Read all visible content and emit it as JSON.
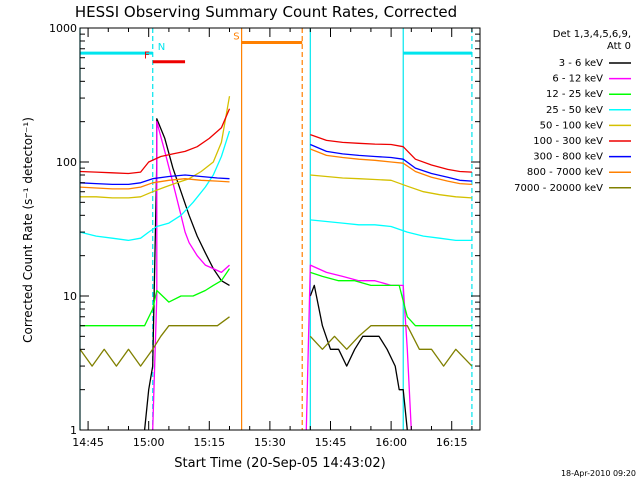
{
  "chart_data": {
    "type": "line",
    "title": "HESSI Observing Summary Count Rates, Corrected",
    "xlabel": "Start Time (20-Sep-05 14:43:02)",
    "ylabel": "Corrected Count Rate (s⁻¹ detector⁻¹)",
    "yscale": "log",
    "ylim": [
      1,
      1000
    ],
    "xlim": [
      "14:43",
      "16:22"
    ],
    "x_ticks": [
      "14:45",
      "15:00",
      "15:15",
      "15:30",
      "15:45",
      "16:00",
      "16:15"
    ],
    "y_ticks": [
      "1",
      "10",
      "100",
      "1000"
    ],
    "timestamp": "18-Apr-2010 09:20",
    "legend": {
      "header": [
        "Det 1,3,4,5,6,9,",
        "Att 0"
      ],
      "position": "right",
      "entries": [
        {
          "label": "3 - 6 keV",
          "color": "#000000"
        },
        {
          "label": "6 - 12 keV",
          "color": "#ff00ff"
        },
        {
          "label": "12 - 25 keV",
          "color": "#00ff00"
        },
        {
          "label": "25 - 50 keV",
          "color": "#00ffff"
        },
        {
          "label": "50 - 100 keV",
          "color": "#d4c000"
        },
        {
          "label": "100 - 300 keV",
          "color": "#ee0000"
        },
        {
          "label": "300 - 800 keV",
          "color": "#0000ff"
        },
        {
          "label": "800 - 7000 keV",
          "color": "#ff8000"
        },
        {
          "label": "7000 - 20000 keV",
          "color": "#808000"
        }
      ]
    },
    "flag_bars": [
      {
        "label": "N",
        "color": "#00e5ee",
        "level": 650,
        "segments": [
          [
            "14:43",
            "15:01"
          ],
          [
            "16:03",
            "16:20"
          ]
        ]
      },
      {
        "label": "F",
        "color": "#ee0000",
        "level": 560,
        "segments": [
          [
            "15:01",
            "15:09"
          ]
        ]
      },
      {
        "label": "S",
        "color": "#ff8000",
        "level": 780,
        "segments": [
          [
            "15:23",
            "15:38"
          ]
        ]
      }
    ],
    "markers": [
      {
        "time": "14:43",
        "color": "#00e5ee",
        "style": "solid"
      },
      {
        "time": "15:01",
        "color": "#00e5ee",
        "style": "dashed"
      },
      {
        "time": "15:23",
        "color": "#ff8000",
        "style": "solid"
      },
      {
        "time": "15:38",
        "color": "#ff8000",
        "style": "dashed"
      },
      {
        "time": "15:40",
        "color": "#00e5ee",
        "style": "solid"
      },
      {
        "time": "16:03",
        "color": "#00e5ee",
        "style": "solid"
      },
      {
        "time": "16:20",
        "color": "#00e5ee",
        "style": "dashed"
      }
    ],
    "gap": [
      "15:23",
      "15:40"
    ],
    "series": [
      {
        "name": "3 - 6 keV",
        "color": "#000000",
        "segments": [
          [
            [
              "14:59",
              1
            ],
            [
              "15:00",
              2
            ],
            [
              "15:01",
              3
            ],
            [
              "15:02",
              100
            ],
            [
              "15:02",
              210
            ],
            [
              "15:04",
              150
            ],
            [
              "15:06",
              90
            ],
            [
              "15:08",
              60
            ],
            [
              "15:10",
              40
            ],
            [
              "15:12",
              28
            ],
            [
              "15:14",
              21
            ],
            [
              "15:16",
              16
            ],
            [
              "15:18",
              13
            ],
            [
              "15:20",
              12
            ]
          ],
          [
            [
              "15:40",
              10
            ],
            [
              "15:41",
              12
            ],
            [
              "15:43",
              6
            ],
            [
              "15:45",
              4
            ],
            [
              "15:47",
              4
            ],
            [
              "15:49",
              3
            ],
            [
              "15:51",
              4
            ],
            [
              "15:53",
              5
            ],
            [
              "15:55",
              5
            ],
            [
              "15:57",
              5
            ],
            [
              "15:59",
              4
            ],
            [
              "16:01",
              3
            ],
            [
              "16:02",
              2
            ],
            [
              "16:03",
              2
            ],
            [
              "16:04",
              1
            ]
          ]
        ]
      },
      {
        "name": "6 - 12 keV",
        "color": "#ff00ff",
        "segments": [
          [
            [
              "15:01",
              1
            ],
            [
              "15:02",
              10
            ],
            [
              "15:02",
              200
            ],
            [
              "15:04",
              120
            ],
            [
              "15:06",
              70
            ],
            [
              "15:08",
              40
            ],
            [
              "15:09",
              30
            ],
            [
              "15:10",
              25
            ],
            [
              "15:12",
              20
            ],
            [
              "15:14",
              17
            ],
            [
              "15:16",
              16
            ],
            [
              "15:18",
              15
            ],
            [
              "15:20",
              17
            ]
          ],
          [
            [
              "15:39",
              1
            ],
            [
              "15:40",
              17
            ],
            [
              "15:44",
              15
            ],
            [
              "15:48",
              14
            ],
            [
              "15:52",
              13
            ],
            [
              "15:56",
              13
            ],
            [
              "16:00",
              12
            ],
            [
              "16:03",
              12
            ],
            [
              "16:04",
              4
            ],
            [
              "16:05",
              1
            ]
          ]
        ]
      },
      {
        "name": "12 - 25 keV",
        "color": "#00ff00",
        "segments": [
          [
            [
              "14:43",
              6
            ],
            [
              "14:47",
              6
            ],
            [
              "14:51",
              6
            ],
            [
              "14:55",
              6
            ],
            [
              "14:59",
              6
            ],
            [
              "15:01",
              8
            ],
            [
              "15:02",
              11
            ],
            [
              "15:05",
              9
            ],
            [
              "15:08",
              10
            ],
            [
              "15:11",
              10
            ],
            [
              "15:14",
              11
            ],
            [
              "15:16",
              12
            ],
            [
              "15:18",
              13
            ],
            [
              "15:20",
              16
            ]
          ],
          [
            [
              "15:40",
              15
            ],
            [
              "15:43",
              14
            ],
            [
              "15:47",
              13
            ],
            [
              "15:51",
              13
            ],
            [
              "15:55",
              12
            ],
            [
              "15:59",
              12
            ],
            [
              "16:02",
              12
            ],
            [
              "16:04",
              7
            ],
            [
              "16:06",
              6
            ],
            [
              "16:10",
              6
            ],
            [
              "16:14",
              6
            ],
            [
              "16:18",
              6
            ],
            [
              "16:20",
              6
            ]
          ]
        ]
      },
      {
        "name": "25 - 50 keV",
        "color": "#00ffff",
        "segments": [
          [
            [
              "14:43",
              30
            ],
            [
              "14:47",
              28
            ],
            [
              "14:51",
              27
            ],
            [
              "14:55",
              26
            ],
            [
              "14:58",
              27
            ],
            [
              "15:00",
              30
            ],
            [
              "15:02",
              33
            ],
            [
              "15:05",
              35
            ],
            [
              "15:08",
              40
            ],
            [
              "15:11",
              50
            ],
            [
              "15:14",
              65
            ],
            [
              "15:16",
              80
            ],
            [
              "15:18",
              110
            ],
            [
              "15:20",
              170
            ]
          ],
          [
            [
              "15:40",
              37
            ],
            [
              "15:44",
              36
            ],
            [
              "15:48",
              35
            ],
            [
              "15:52",
              34
            ],
            [
              "15:56",
              34
            ],
            [
              "16:00",
              33
            ],
            [
              "16:04",
              30
            ],
            [
              "16:08",
              28
            ],
            [
              "16:12",
              27
            ],
            [
              "16:16",
              26
            ],
            [
              "16:20",
              26
            ]
          ]
        ]
      },
      {
        "name": "50 - 100 keV",
        "color": "#d4c000",
        "segments": [
          [
            [
              "14:43",
              55
            ],
            [
              "14:47",
              55
            ],
            [
              "14:51",
              54
            ],
            [
              "14:55",
              54
            ],
            [
              "14:58",
              55
            ],
            [
              "15:01",
              60
            ],
            [
              "15:04",
              65
            ],
            [
              "15:07",
              70
            ],
            [
              "15:10",
              75
            ],
            [
              "15:13",
              85
            ],
            [
              "15:16",
              100
            ],
            [
              "15:18",
              140
            ],
            [
              "15:20",
              310
            ]
          ],
          [
            [
              "15:40",
              80
            ],
            [
              "15:44",
              78
            ],
            [
              "15:48",
              76
            ],
            [
              "15:52",
              75
            ],
            [
              "15:56",
              74
            ],
            [
              "16:00",
              73
            ],
            [
              "16:04",
              66
            ],
            [
              "16:08",
              60
            ],
            [
              "16:12",
              57
            ],
            [
              "16:16",
              55
            ],
            [
              "16:20",
              54
            ]
          ]
        ]
      },
      {
        "name": "100 - 300 keV",
        "color": "#ee0000",
        "segments": [
          [
            [
              "14:43",
              85
            ],
            [
              "14:47",
              84
            ],
            [
              "14:51",
              83
            ],
            [
              "14:55",
              82
            ],
            [
              "14:58",
              84
            ],
            [
              "15:00",
              100
            ],
            [
              "15:03",
              110
            ],
            [
              "15:06",
              115
            ],
            [
              "15:09",
              120
            ],
            [
              "15:12",
              130
            ],
            [
              "15:15",
              150
            ],
            [
              "15:18",
              180
            ],
            [
              "15:20",
              250
            ]
          ],
          [
            [
              "15:40",
              160
            ],
            [
              "15:44",
              145
            ],
            [
              "15:48",
              140
            ],
            [
              "15:52",
              138
            ],
            [
              "15:56",
              136
            ],
            [
              "16:00",
              135
            ],
            [
              "16:03",
              130
            ],
            [
              "16:06",
              105
            ],
            [
              "16:10",
              95
            ],
            [
              "16:14",
              88
            ],
            [
              "16:17",
              85
            ],
            [
              "16:20",
              84
            ]
          ]
        ]
      },
      {
        "name": "300 - 800 keV",
        "color": "#0000ff",
        "segments": [
          [
            [
              "14:43",
              70
            ],
            [
              "14:47",
              69
            ],
            [
              "14:51",
              68
            ],
            [
              "14:55",
              68
            ],
            [
              "14:58",
              70
            ],
            [
              "15:01",
              75
            ],
            [
              "15:05",
              78
            ],
            [
              "15:09",
              80
            ],
            [
              "15:13",
              78
            ],
            [
              "15:17",
              76
            ],
            [
              "15:20",
              75
            ]
          ],
          [
            [
              "15:40",
              135
            ],
            [
              "15:44",
              120
            ],
            [
              "15:48",
              115
            ],
            [
              "15:52",
              112
            ],
            [
              "15:56",
              110
            ],
            [
              "16:00",
              108
            ],
            [
              "16:03",
              105
            ],
            [
              "16:06",
              90
            ],
            [
              "16:10",
              82
            ],
            [
              "16:14",
              77
            ],
            [
              "16:17",
              73
            ],
            [
              "16:20",
              72
            ]
          ]
        ]
      },
      {
        "name": "800 - 7000 keV",
        "color": "#ff8000",
        "segments": [
          [
            [
              "14:43",
              65
            ],
            [
              "14:47",
              64
            ],
            [
              "14:51",
              63
            ],
            [
              "14:55",
              63
            ],
            [
              "14:58",
              65
            ],
            [
              "15:01",
              70
            ],
            [
              "15:05",
              73
            ],
            [
              "15:09",
              75
            ],
            [
              "15:13",
              73
            ],
            [
              "15:17",
              72
            ],
            [
              "15:20",
              71
            ]
          ],
          [
            [
              "15:40",
              125
            ],
            [
              "15:44",
              112
            ],
            [
              "15:48",
              108
            ],
            [
              "15:52",
              105
            ],
            [
              "15:56",
              103
            ],
            [
              "16:00",
              100
            ],
            [
              "16:03",
              98
            ],
            [
              "16:06",
              85
            ],
            [
              "16:10",
              77
            ],
            [
              "16:14",
              72
            ],
            [
              "16:17",
              69
            ],
            [
              "16:20",
              68
            ]
          ]
        ]
      },
      {
        "name": "7000 - 20000 keV",
        "color": "#808000",
        "segments": [
          [
            [
              "14:43",
              4
            ],
            [
              "14:46",
              3
            ],
            [
              "14:49",
              4
            ],
            [
              "14:52",
              3
            ],
            [
              "14:55",
              4
            ],
            [
              "14:58",
              3
            ],
            [
              "15:01",
              4
            ],
            [
              "15:03",
              5
            ],
            [
              "15:05",
              6
            ],
            [
              "15:08",
              6
            ],
            [
              "15:11",
              6
            ],
            [
              "15:14",
              6
            ],
            [
              "15:17",
              6
            ],
            [
              "15:20",
              7
            ]
          ],
          [
            [
              "15:40",
              5
            ],
            [
              "15:43",
              4
            ],
            [
              "15:46",
              5
            ],
            [
              "15:49",
              4
            ],
            [
              "15:52",
              5
            ],
            [
              "15:55",
              6
            ],
            [
              "15:58",
              6
            ],
            [
              "16:01",
              6
            ],
            [
              "16:04",
              6
            ],
            [
              "16:07",
              4
            ],
            [
              "16:10",
              4
            ],
            [
              "16:13",
              3
            ],
            [
              "16:16",
              4
            ],
            [
              "16:20",
              3
            ]
          ]
        ]
      }
    ]
  }
}
